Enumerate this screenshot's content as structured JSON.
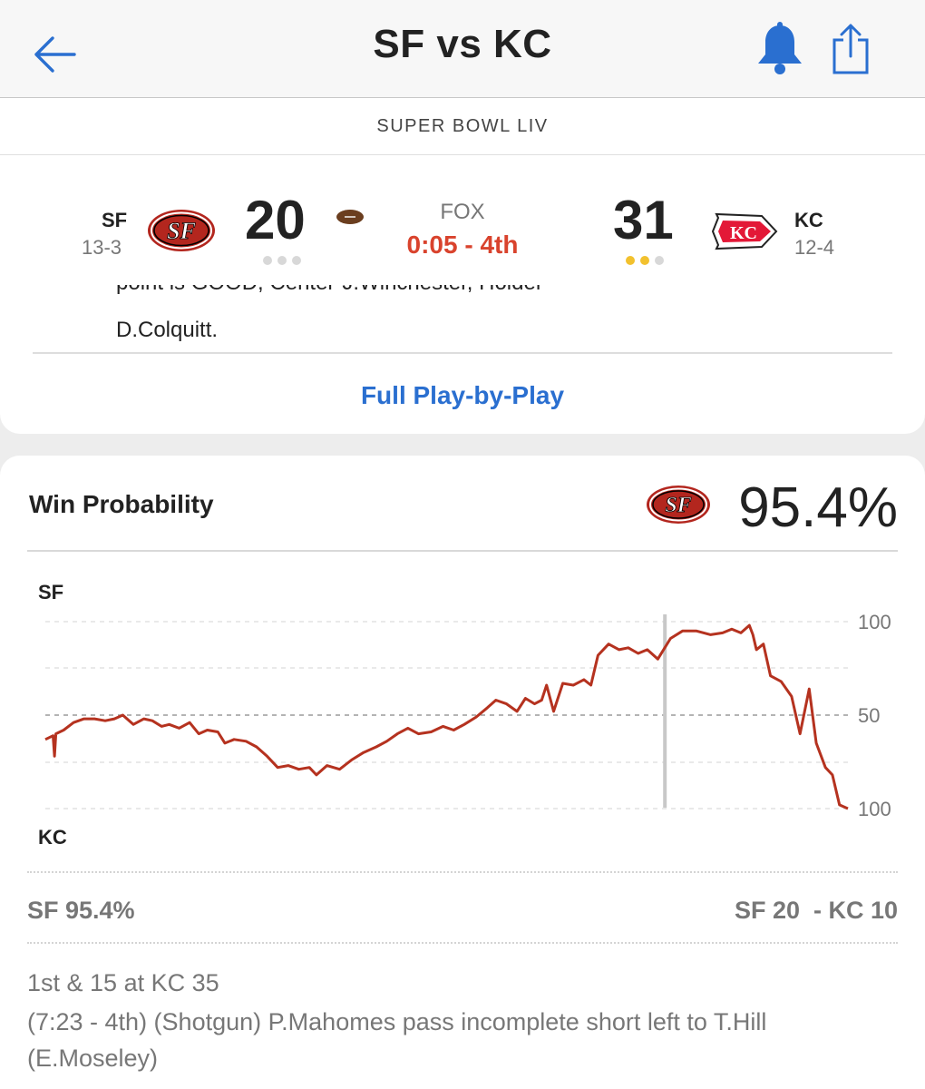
{
  "nav": {
    "title": "SF vs KC",
    "back_icon": "back-arrow-icon",
    "bell_icon": "bell-icon",
    "share_icon": "share-icon",
    "accent": "#2a6fd0"
  },
  "game": {
    "event": "SUPER BOWL LIV",
    "home": {
      "abbr": "SF",
      "record": "13-3",
      "score": "20",
      "logo": "49ers-logo",
      "color": "#b3261e",
      "timeouts_left": 0
    },
    "away": {
      "abbr": "KC",
      "record": "12-4",
      "score": "31",
      "logo": "chiefs-logo",
      "color": "#e31837",
      "timeouts_left": 2
    },
    "possession_icon": "football-icon",
    "network": "FOX",
    "clock": "0:05 - 4th",
    "clock_color": "#d9432d"
  },
  "last_play": {
    "cut_text": "point is GOOD, Center-J.Winchester, Holder-",
    "tail_text": "D.Colquitt.",
    "link_label": "Full Play-by-Play"
  },
  "win_probability": {
    "title": "Win Probability",
    "team_logo": "49ers-logo",
    "headline_pct": "95.4%",
    "footer_left": "SF 95.4%",
    "footer_right": "SF 20  - KC 10",
    "down_distance": "1st & 15 at KC 35",
    "play_desc": "(7:23 - 4th) (Shotgun) P.Mahomes pass incomplete short left to T.Hill (E.Moseley)"
  },
  "chart_data": {
    "type": "line",
    "top_label": "SF",
    "bottom_label": "KC",
    "y_tick_labels": [
      "100",
      "50",
      "100"
    ],
    "ylim": [
      0,
      100
    ],
    "line_color": "#b5321f",
    "grid": true,
    "marker_x": 0.88,
    "series": [
      {
        "values": [
          [
            0.0,
            37
          ],
          [
            0.011,
            39
          ],
          [
            0.013,
            28
          ],
          [
            0.015,
            40
          ],
          [
            0.026,
            42
          ],
          [
            0.04,
            46
          ],
          [
            0.055,
            48
          ],
          [
            0.07,
            48
          ],
          [
            0.085,
            47
          ],
          [
            0.098,
            48
          ],
          [
            0.11,
            50
          ],
          [
            0.125,
            45
          ],
          [
            0.14,
            48
          ],
          [
            0.152,
            47
          ],
          [
            0.165,
            44
          ],
          [
            0.176,
            45
          ],
          [
            0.19,
            43
          ],
          [
            0.205,
            46
          ],
          [
            0.218,
            40
          ],
          [
            0.23,
            42
          ],
          [
            0.245,
            41
          ],
          [
            0.255,
            35
          ],
          [
            0.268,
            37
          ],
          [
            0.285,
            36
          ],
          [
            0.3,
            33
          ],
          [
            0.315,
            28
          ],
          [
            0.33,
            22
          ],
          [
            0.345,
            23
          ],
          [
            0.36,
            21
          ],
          [
            0.375,
            22
          ],
          [
            0.385,
            18
          ],
          [
            0.4,
            23
          ],
          [
            0.418,
            21
          ],
          [
            0.435,
            26
          ],
          [
            0.452,
            30
          ],
          [
            0.47,
            33
          ],
          [
            0.485,
            36
          ],
          [
            0.5,
            40
          ],
          [
            0.515,
            43
          ],
          [
            0.53,
            40
          ],
          [
            0.548,
            41
          ],
          [
            0.565,
            44
          ],
          [
            0.58,
            42
          ],
          [
            0.595,
            45
          ],
          [
            0.612,
            49
          ],
          [
            0.628,
            54
          ],
          [
            0.64,
            58
          ],
          [
            0.655,
            56
          ],
          [
            0.67,
            52
          ],
          [
            0.682,
            59
          ],
          [
            0.695,
            56
          ],
          [
            0.705,
            58
          ],
          [
            0.712,
            66
          ],
          [
            0.722,
            52
          ],
          [
            0.735,
            67
          ],
          [
            0.75,
            66
          ],
          [
            0.765,
            69
          ],
          [
            0.775,
            66
          ],
          [
            0.785,
            82
          ],
          [
            0.8,
            88
          ],
          [
            0.815,
            85
          ],
          [
            0.828,
            86
          ],
          [
            0.842,
            83
          ],
          [
            0.855,
            85
          ],
          [
            0.87,
            80
          ],
          [
            0.888,
            91
          ],
          [
            0.905,
            95
          ],
          [
            0.925,
            95
          ],
          [
            0.945,
            93
          ],
          [
            0.962,
            94
          ],
          [
            0.975,
            96
          ],
          [
            0.988,
            94
          ],
          [
            1.0,
            98
          ],
          [
            1.005,
            93
          ],
          [
            1.01,
            85
          ],
          [
            1.02,
            88
          ],
          [
            1.03,
            71
          ],
          [
            1.045,
            68
          ],
          [
            1.06,
            60
          ],
          [
            1.072,
            40
          ],
          [
            1.085,
            64
          ],
          [
            1.095,
            35
          ],
          [
            1.108,
            22
          ],
          [
            1.118,
            18
          ],
          [
            1.128,
            2
          ],
          [
            1.14,
            0
          ]
        ]
      }
    ]
  }
}
